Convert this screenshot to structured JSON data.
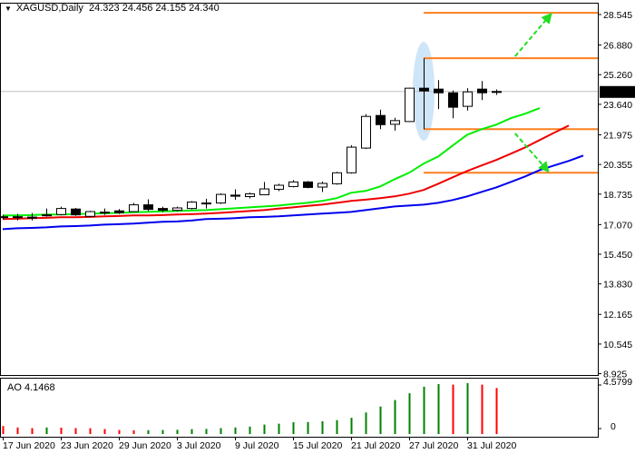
{
  "header": {
    "symbol_timeframe": "XAGUSD,Daily",
    "ohlc_text": "24.323 24.456 24.155 24.340"
  },
  "chart_data": {
    "type": "candlestick",
    "price_axis": {
      "labels": [
        "28.545",
        "26.880",
        "25.260",
        "23.640",
        "21.975",
        "20.355",
        "18.735",
        "17.070",
        "15.450",
        "13.830",
        "12.165",
        "10.545",
        "8.925"
      ],
      "current_price": "24.340"
    },
    "dates": [
      "2020-06-17",
      "2020-06-18",
      "2020-06-19",
      "2020-06-22",
      "2020-06-23",
      "2020-06-24",
      "2020-06-25",
      "2020-06-26",
      "2020-06-29",
      "2020-06-30",
      "2020-07-01",
      "2020-07-02",
      "2020-07-03",
      "2020-07-06",
      "2020-07-07",
      "2020-07-08",
      "2020-07-09",
      "2020-07-10",
      "2020-07-13",
      "2020-07-14",
      "2020-07-15",
      "2020-07-16",
      "2020-07-17",
      "2020-07-20",
      "2020-07-21",
      "2020-07-22",
      "2020-07-23",
      "2020-07-24",
      "2020-07-27",
      "2020-07-28",
      "2020-07-29",
      "2020-07-30",
      "2020-07-31",
      "2020-08-03",
      "2020-08-04"
    ],
    "ohlc": [
      [
        17.5,
        17.6,
        17.35,
        17.45
      ],
      [
        17.45,
        17.65,
        17.3,
        17.5
      ],
      [
        17.48,
        17.7,
        17.3,
        17.42
      ],
      [
        17.55,
        17.95,
        17.5,
        17.6
      ],
      [
        17.62,
        18.05,
        17.58,
        17.95
      ],
      [
        17.92,
        17.98,
        17.55,
        17.6
      ],
      [
        17.52,
        17.82,
        17.48,
        17.78
      ],
      [
        17.7,
        17.95,
        17.6,
        17.75
      ],
      [
        17.82,
        17.92,
        17.65,
        17.72
      ],
      [
        17.78,
        18.25,
        17.75,
        18.15
      ],
      [
        18.15,
        18.45,
        17.8,
        17.9
      ],
      [
        17.95,
        18.05,
        17.75,
        17.85
      ],
      [
        17.85,
        18.05,
        17.8,
        17.98
      ],
      [
        17.95,
        18.35,
        17.9,
        18.3
      ],
      [
        18.25,
        18.48,
        17.95,
        18.2
      ],
      [
        18.25,
        18.78,
        18.2,
        18.72
      ],
      [
        18.68,
        19.0,
        18.42,
        18.62
      ],
      [
        18.6,
        18.82,
        18.5,
        18.75
      ],
      [
        18.7,
        19.4,
        18.68,
        19.02
      ],
      [
        19.0,
        19.3,
        18.9,
        19.22
      ],
      [
        19.15,
        19.5,
        19.1,
        19.4
      ],
      [
        19.4,
        19.45,
        19.05,
        19.1
      ],
      [
        19.12,
        19.42,
        18.85,
        19.32
      ],
      [
        19.3,
        19.95,
        19.25,
        19.9
      ],
      [
        19.9,
        21.4,
        19.85,
        21.3
      ],
      [
        21.25,
        23.1,
        21.2,
        22.98
      ],
      [
        23.03,
        23.35,
        22.28,
        22.53
      ],
      [
        22.55,
        22.9,
        22.2,
        22.75
      ],
      [
        22.7,
        24.55,
        22.68,
        24.52
      ],
      [
        24.52,
        26.16,
        22.28,
        24.37
      ],
      [
        24.47,
        24.96,
        23.38,
        24.27
      ],
      [
        24.27,
        24.4,
        22.88,
        23.48
      ],
      [
        23.53,
        24.52,
        23.3,
        24.32
      ],
      [
        24.47,
        24.91,
        23.87,
        24.27
      ],
      [
        24.323,
        24.456,
        24.155,
        24.34
      ]
    ],
    "ma_lines": [
      {
        "color": "#00ee00",
        "values": [
          17.57,
          17.57,
          17.59,
          17.62,
          17.62,
          17.64,
          17.67,
          17.69,
          17.71,
          17.74,
          17.76,
          17.79,
          17.81,
          17.84,
          17.86,
          17.91,
          17.96,
          18.01,
          18.06,
          18.11,
          18.19,
          18.26,
          18.36,
          18.51,
          18.81,
          18.91,
          19.15,
          19.55,
          19.9,
          20.4,
          20.79,
          21.39,
          21.98,
          22.28,
          22.53,
          22.88,
          23.13,
          23.43
        ]
      },
      {
        "color": "#ee0000",
        "values": [
          17.37,
          17.39,
          17.42,
          17.44,
          17.47,
          17.47,
          17.49,
          17.52,
          17.54,
          17.57,
          17.57,
          17.59,
          17.62,
          17.64,
          17.67,
          17.71,
          17.76,
          17.81,
          17.86,
          17.94,
          18.01,
          18.09,
          18.16,
          18.26,
          18.36,
          18.43,
          18.51,
          18.61,
          18.76,
          18.96,
          19.3,
          19.65,
          20.0,
          20.3,
          20.6,
          20.94,
          21.29,
          21.69,
          22.09,
          22.48
        ]
      },
      {
        "color": "#0000ee",
        "values": [
          16.82,
          16.87,
          16.89,
          16.92,
          16.97,
          16.99,
          17.02,
          17.07,
          17.09,
          17.12,
          17.17,
          17.22,
          17.24,
          17.29,
          17.37,
          17.39,
          17.42,
          17.47,
          17.49,
          17.52,
          17.57,
          17.62,
          17.67,
          17.71,
          17.76,
          17.86,
          17.96,
          18.06,
          18.11,
          18.16,
          18.26,
          18.41,
          18.61,
          18.86,
          19.1,
          19.4,
          19.7,
          20.05,
          20.3,
          20.55,
          20.84
        ]
      }
    ],
    "levels": {
      "color": "#ff7f1e",
      "start_date": "2020-07-28",
      "prices": [
        28.64,
        26.16,
        22.28,
        19.9
      ]
    },
    "highlight": {
      "date": "2020-07-28",
      "price_top": 27.05,
      "price_bottom": 21.65,
      "color": "#cfe5f8"
    },
    "arrows": [
      {
        "color": "#22dd22",
        "from_bar": 35.3,
        "from_price": 26.26,
        "to_bar": 37.7,
        "to_price": 28.5
      },
      {
        "color": "#22dd22",
        "from_bar": 35.3,
        "from_price": 22.05,
        "to_bar": 37.5,
        "to_price": 20.06
      }
    ],
    "date_labels": [
      {
        "date": "2020-06-17",
        "label": "17 Jun 2020"
      },
      {
        "date": "2020-06-23",
        "label": "23 Jun 2020"
      },
      {
        "date": "2020-06-29",
        "label": "29 Jun 2020"
      },
      {
        "date": "2020-07-03",
        "label": "3 Jul 2020"
      },
      {
        "date": "2020-07-09",
        "label": "9 Jul 2020"
      },
      {
        "date": "2020-07-15",
        "label": "15 Jul 2020"
      },
      {
        "date": "2020-07-21",
        "label": "21 Jul 2020"
      },
      {
        "date": "2020-07-27",
        "label": "27 Jul 2020"
      },
      {
        "date": "2020-07-31",
        "label": "31 Jul 2020"
      }
    ]
  },
  "ao": {
    "label": "AO 4.1468",
    "axis_labels": [
      "4.5799",
      "0"
    ],
    "max": 4.5799,
    "up_color": "#008000",
    "down_color": "#ff0000",
    "values": [
      0.72,
      0.59,
      0.53,
      0.59,
      0.57,
      0.53,
      0.52,
      0.45,
      0.36,
      0.34,
      0.35,
      0.36,
      0.38,
      0.44,
      0.46,
      0.53,
      0.59,
      0.67,
      0.85,
      0.93,
      1.06,
      1.08,
      1.15,
      1.25,
      1.46,
      1.94,
      2.48,
      3.06,
      3.67,
      4.26,
      4.5,
      4.45,
      4.58,
      4.45,
      4.1468
    ]
  }
}
